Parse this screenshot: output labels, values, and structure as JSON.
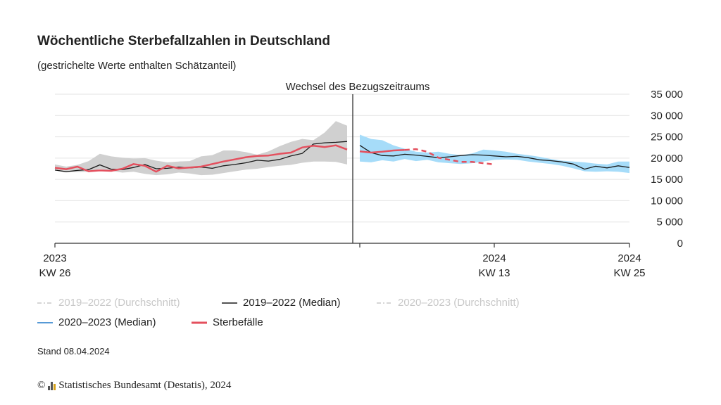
{
  "header": {
    "title": "Wöchentliche Sterbefallzahlen in Deutschland",
    "subtitle": "(gestrichelte Werte enthalten Schätzanteil)"
  },
  "colors": {
    "band_old": "#d0d0d0",
    "band_new": "#a6dcf9",
    "median": "#1a1a1a",
    "deaths": "#e4505e",
    "legend_dim": "#c8c8c8",
    "legend_blue": "#1f78c8"
  },
  "chart_data": {
    "type": "line",
    "title": "Wöchentliche Sterbefallzahlen in Deutschland",
    "subtitle": "(gestrichelte Werte enthalten Schätzanteil)",
    "annotation": "Wechsel des Bezugszeitraums",
    "ylim": [
      0,
      35000
    ],
    "y_ticks": [
      35000,
      30000,
      25000,
      20000,
      15000,
      10000,
      5000,
      0
    ],
    "y_tick_labels": [
      "35 000",
      "30 000",
      "25 000",
      "20 000",
      "15 000",
      "10 000",
      "5 000",
      "0"
    ],
    "y_axis_position": "right",
    "grid": true,
    "x_ticks": [
      {
        "year": "2023",
        "week": "KW 26"
      },
      {
        "year": "2024",
        "week": "KW 13"
      },
      {
        "year": "2024",
        "week": "KW 25"
      }
    ],
    "segments": [
      {
        "period": "2019–2022",
        "weeks": [
          "2023 KW 26",
          "2023 KW 52"
        ],
        "band_min": [
          17500,
          16800,
          16700,
          16800,
          17400,
          17000,
          16600,
          16800,
          16300,
          16000,
          16200,
          16600,
          16400,
          16000,
          16100,
          16500,
          16900,
          17300,
          17500,
          17900,
          18200,
          18400,
          18900,
          19200,
          19200,
          19100,
          18500
        ],
        "band_max": [
          18500,
          18000,
          18400,
          19300,
          21000,
          20400,
          20100,
          19900,
          20000,
          19400,
          19000,
          19200,
          19300,
          20400,
          20700,
          21800,
          21800,
          21400,
          20800,
          21600,
          22800,
          23800,
          24500,
          24200,
          26000,
          28700,
          27600
        ],
        "median": [
          17200,
          16800,
          17100,
          17300,
          18400,
          17400,
          17300,
          17800,
          18500,
          17500,
          17600,
          17900,
          17700,
          17900,
          17600,
          18200,
          18500,
          18900,
          19500,
          19300,
          19700,
          20500,
          21100,
          23300,
          23600,
          23700,
          23900
        ],
        "deaths": [
          17700,
          17400,
          18000,
          16900,
          17100,
          17000,
          17500,
          18600,
          18200,
          16800,
          18200,
          17600,
          17800,
          18000,
          18600,
          19200,
          19700,
          20200,
          20500,
          20600,
          21000,
          21300,
          22500,
          22900,
          22600,
          23000,
          22000
        ]
      },
      {
        "period": "2020–2023",
        "weeks": [
          "2024 KW 1",
          "2024 KW 25"
        ],
        "band_min": [
          19200,
          19000,
          19500,
          19200,
          19800,
          19300,
          19600,
          19000,
          18800,
          18600,
          18800,
          19200,
          19600,
          19700,
          19600,
          19200,
          18900,
          18600,
          18200,
          17600,
          16900,
          16800,
          16900,
          16800,
          16500
        ],
        "band_max": [
          25500,
          24500,
          24200,
          23000,
          22200,
          21500,
          21300,
          21500,
          21000,
          20700,
          21100,
          22000,
          21800,
          21500,
          21000,
          20700,
          20300,
          19800,
          19400,
          19200,
          19000,
          18700,
          18500,
          19200,
          19200
        ],
        "median": [
          23000,
          21300,
          20600,
          20500,
          20900,
          20700,
          20400,
          20100,
          20300,
          20600,
          20800,
          20700,
          20500,
          20300,
          20400,
          20100,
          19600,
          19400,
          19100,
          18600,
          17400,
          18100,
          17700,
          18200,
          17800
        ],
        "deaths_weeks": [
          "2024 KW 1",
          "2024 KW 13"
        ],
        "deaths": [
          21600,
          21300,
          21500,
          21800,
          21900,
          22100,
          21500,
          20100,
          19600,
          19100,
          19100,
          18800,
          18500
        ],
        "deaths_estimated_from_week": "2024 KW 5"
      }
    ],
    "legend": [
      {
        "label": "2019–2022 (Durchschnitt)",
        "style": "dashdot",
        "dim": true
      },
      {
        "label": "2019–2022 (Median)",
        "style": "solid-black"
      },
      {
        "label": "2020–2023 (Durchschnitt)",
        "style": "dashdot",
        "dim": true
      },
      {
        "label": "2020–2023 (Median)",
        "style": "solid-blue"
      },
      {
        "label": "Sterbefälle",
        "style": "solid-red"
      }
    ]
  },
  "footer": {
    "stand": "Stand 08.04.2024",
    "copyright_symbol": "©",
    "source": "Statistisches Bundesamt (Destatis), 2024"
  }
}
